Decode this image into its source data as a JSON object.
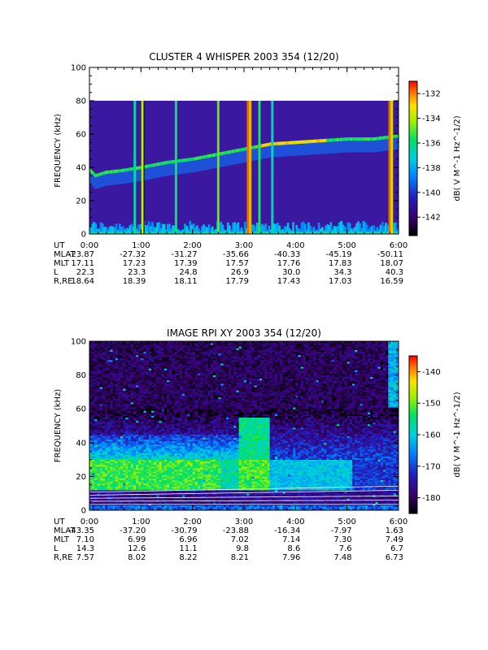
{
  "chart_data": [
    {
      "type": "heatmap",
      "title": "CLUSTER 4 WHISPER 2003 354 (12/20)",
      "ylabel": "FREQUENCY (kHz)",
      "colorbar_label": "dB( V M⁻¹ Hz⁻¹ᐟ²)",
      "colorbar_label_text": "dB( V M^-1 Hz^-1/2)",
      "ylim": [
        0,
        100
      ],
      "yticks": [
        "0",
        "20",
        "40",
        "60",
        "80",
        "100"
      ],
      "xticks": [
        "0:00",
        "1:00",
        "2:00",
        "3:00",
        "4:00",
        "5:00",
        "6:00"
      ],
      "cbar_range": [
        -143.5,
        -131
      ],
      "cbar_ticks": [
        "-132",
        "-134",
        "-136",
        "-138",
        "-140",
        "-142"
      ],
      "data_top_khz": 80,
      "plasma_line_khz": [
        [
          0.0,
          38
        ],
        [
          0.1,
          35
        ],
        [
          0.3,
          37
        ],
        [
          0.6,
          38
        ],
        [
          1.0,
          40
        ],
        [
          1.5,
          43
        ],
        [
          2.0,
          45
        ],
        [
          2.5,
          48
        ],
        [
          3.0,
          51
        ],
        [
          3.5,
          54
        ],
        [
          4.0,
          55
        ],
        [
          4.5,
          56
        ],
        [
          5.0,
          57
        ],
        [
          5.5,
          57
        ],
        [
          6.0,
          59
        ]
      ],
      "ephemeris": {
        "labels": [
          "UT",
          "MLAT",
          "MLT",
          "L",
          "R,RE"
        ],
        "rows": [
          [
            "0:00",
            "1:00",
            "2:00",
            "3:00",
            "4:00",
            "5:00",
            "6:00"
          ],
          [
            "-23.87",
            "-27.32",
            "-31.27",
            "-35.66",
            "-40.33",
            "-45.19",
            "-50.11"
          ],
          [
            "17.11",
            "17.23",
            "17.39",
            "17.57",
            "17.76",
            "17.83",
            "18.07"
          ],
          [
            "22.3",
            "23.3",
            "24.8",
            "26.9",
            "30.0",
            "34.3",
            "40.3"
          ],
          [
            "18.64",
            "18.39",
            "18.11",
            "17.79",
            "17.43",
            "17.03",
            "16.59"
          ]
        ]
      }
    },
    {
      "type": "heatmap",
      "title": "IMAGE RPI XY 2003 354 (12/20)",
      "ylabel": "FREQUENCY (kHz)",
      "colorbar_label_text": "dB( V M^-1 Hz^-1/2)",
      "ylim": [
        0,
        100
      ],
      "yticks": [
        "0",
        "20",
        "40",
        "60",
        "80",
        "100"
      ],
      "xticks": [
        "0:00",
        "1:00",
        "2:00",
        "3:00",
        "4:00",
        "5:00",
        "6:00"
      ],
      "cbar_range": [
        -185,
        -135
      ],
      "cbar_ticks": [
        "-140",
        "-150",
        "-160",
        "-170",
        "-180"
      ],
      "ephemeris": {
        "labels": [
          "UT",
          "MLAT",
          "MLT",
          "L",
          "R,RE"
        ],
        "rows": [
          [
            "0:00",
            "1:00",
            "2:00",
            "3:00",
            "4:00",
            "5:00",
            "6:00"
          ],
          [
            "-43.35",
            "-37.20",
            "-30.79",
            "-23.88",
            "-16.34",
            "-7.97",
            "1.63"
          ],
          [
            "7.10",
            "6.99",
            "6.96",
            "7.02",
            "7.14",
            "7.30",
            "7.49"
          ],
          [
            "14.3",
            "12.6",
            "11.1",
            "9.8",
            "8.6",
            "7.6",
            "6.7"
          ],
          [
            "7.57",
            "8.02",
            "8.22",
            "8.21",
            "7.96",
            "7.48",
            "6.73"
          ]
        ]
      }
    }
  ]
}
